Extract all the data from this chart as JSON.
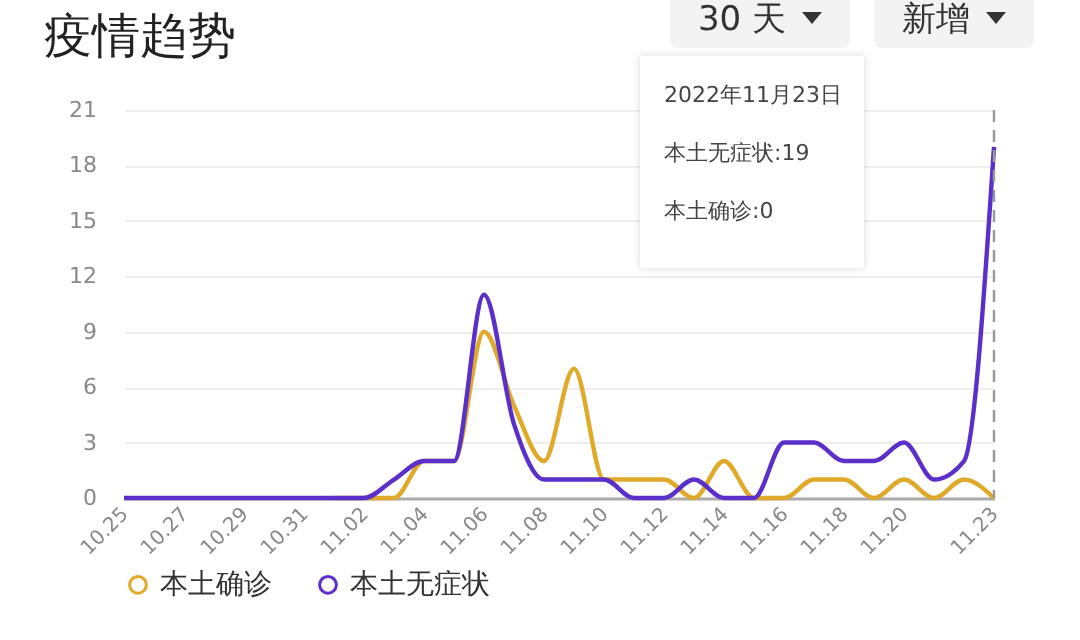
{
  "chart_data": {
    "type": "line",
    "title": "疫情趋势",
    "categories": [
      "10.25",
      null,
      "10.27",
      null,
      "10.29",
      null,
      "10.31",
      null,
      "11.02",
      null,
      "11.04",
      null,
      "11.06",
      null,
      "11.08",
      null,
      "11.10",
      null,
      "11.12",
      null,
      "11.14",
      null,
      "11.16",
      null,
      "11.18",
      null,
      "11.20",
      null,
      null,
      "11.23"
    ],
    "series": [
      {
        "name": "本土确诊",
        "color": "#e0a92a",
        "values": [
          null,
          null,
          null,
          null,
          null,
          null,
          null,
          0,
          0,
          0,
          2,
          2,
          9,
          5,
          2,
          7,
          1,
          1,
          1,
          0,
          2,
          0,
          0,
          1,
          1,
          0,
          1,
          0,
          1,
          0
        ]
      },
      {
        "name": "本土无症状",
        "color": "#5b2fc9",
        "values": [
          0,
          0,
          0,
          0,
          0,
          0,
          0,
          0,
          0,
          1,
          2,
          2,
          11,
          4,
          1,
          1,
          1,
          0,
          0,
          1,
          0,
          0,
          3,
          3,
          2,
          2,
          3,
          1,
          2,
          19
        ]
      }
    ],
    "ylim": [
      0,
      21
    ],
    "yticks": [
      0,
      3,
      6,
      9,
      12,
      15,
      18,
      21
    ],
    "grid": "y",
    "legend": "bottom",
    "marker": "none",
    "line_style": "solid",
    "ref_lines": [
      {
        "axis": "x",
        "value": "11.23",
        "line_style": "dashed",
        "color": "#999999"
      }
    ],
    "annotations": [
      "30 天",
      "新增",
      "2022年11月23日",
      "本土无症状:19",
      "本土确诊:0"
    ]
  }
}
